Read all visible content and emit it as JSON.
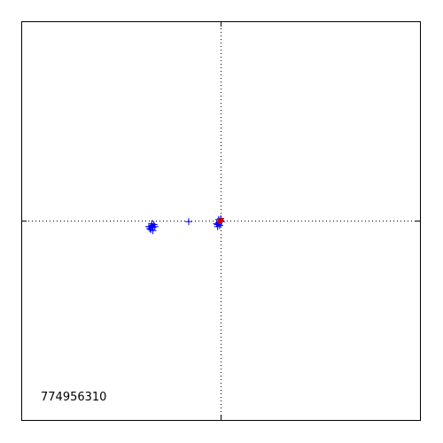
{
  "chart_data": {
    "type": "scatter",
    "annotation": "774956310",
    "xlim": [
      -1,
      1
    ],
    "ylim": [
      -1,
      1
    ],
    "reference_lines": {
      "x": 0,
      "y": 0,
      "style": "dotted"
    },
    "legend": "none",
    "grid": false,
    "series": [
      {
        "marker": "+",
        "color": "#0000ff",
        "points": [
          [
            -0.35,
            -0.03
          ],
          [
            -0.34,
            -0.035
          ],
          [
            -0.345,
            -0.025
          ],
          [
            -0.355,
            -0.04
          ],
          [
            -0.335,
            -0.02
          ],
          [
            -0.35,
            -0.045
          ],
          [
            -0.345,
            -0.015
          ],
          [
            -0.36,
            -0.03
          ],
          [
            -0.33,
            -0.03
          ],
          [
            -0.34,
            -0.05
          ],
          [
            -0.16,
            -0.005
          ],
          [
            -0.01,
            -0.01
          ],
          [
            -0.015,
            -0.02
          ],
          [
            -0.005,
            -0.025
          ],
          [
            -0.02,
            -0.015
          ],
          [
            0.0,
            0.01
          ],
          [
            -0.01,
            0.005
          ],
          [
            0.005,
            -0.005
          ],
          [
            -0.015,
            -0.03
          ]
        ]
      },
      {
        "marker": "o",
        "color": "#c00000",
        "points": [
          [
            0.0,
            0.0
          ],
          [
            -0.005,
            -0.004
          ],
          [
            0.004,
            0.004
          ],
          [
            -0.003,
            0.003
          ]
        ]
      }
    ]
  }
}
